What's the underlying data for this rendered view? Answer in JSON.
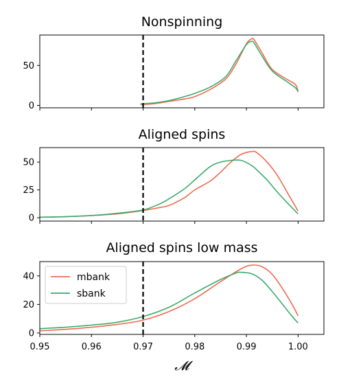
{
  "colors": {
    "mbank": "#ee6a4d",
    "sbank": "#3aaa6c",
    "vline": "#000000"
  },
  "xlabel": "𝓜",
  "chart_data": [
    {
      "type": "line",
      "title": "Nonspinning",
      "xlim": [
        0.95,
        1.005
      ],
      "ylim": [
        -3,
        88
      ],
      "yticks": [
        0,
        50
      ],
      "show_xticklabels": false,
      "vline": 0.97,
      "series": [
        {
          "name": "mbank",
          "x": [
            0.9695,
            0.972,
            0.975,
            0.978,
            0.98,
            0.983,
            0.986,
            0.988,
            0.99,
            0.991,
            0.9915,
            0.993,
            0.995,
            0.998,
            0.9995,
            1.0
          ],
          "y": [
            1,
            2,
            5,
            8,
            11,
            20,
            33,
            52,
            77,
            83,
            82,
            66,
            45,
            32,
            26,
            18
          ]
        },
        {
          "name": "sbank",
          "x": [
            0.9695,
            0.972,
            0.975,
            0.978,
            0.98,
            0.983,
            0.986,
            0.988,
            0.99,
            0.991,
            0.9915,
            0.993,
            0.995,
            0.998,
            0.9995,
            1.0
          ],
          "y": [
            2,
            3,
            6,
            11,
            15,
            23,
            36,
            56,
            76,
            80,
            78,
            62,
            43,
            29,
            22,
            17
          ]
        }
      ]
    },
    {
      "type": "line",
      "title": "Aligned spins",
      "xlim": [
        0.95,
        1.005
      ],
      "ylim": [
        -3,
        63
      ],
      "yticks": [
        0,
        25,
        50
      ],
      "show_xticklabels": false,
      "vline": 0.97,
      "series": [
        {
          "name": "mbank",
          "x": [
            0.95,
            0.955,
            0.96,
            0.965,
            0.97,
            0.973,
            0.975,
            0.978,
            0.98,
            0.983,
            0.985,
            0.987,
            0.989,
            0.991,
            0.992,
            0.994,
            0.996,
            0.998,
            1.0
          ],
          "y": [
            0.5,
            1,
            2,
            3.5,
            6.5,
            9,
            11,
            18,
            25,
            33,
            41,
            50,
            57,
            59.5,
            58.5,
            50,
            38,
            22,
            6
          ]
        },
        {
          "name": "sbank",
          "x": [
            0.95,
            0.955,
            0.96,
            0.965,
            0.97,
            0.973,
            0.975,
            0.978,
            0.98,
            0.983,
            0.985,
            0.987,
            0.989,
            0.991,
            0.992,
            0.994,
            0.996,
            0.998,
            1.0
          ],
          "y": [
            0.5,
            1,
            2,
            4,
            7,
            12,
            17,
            26,
            34,
            46,
            50,
            51.5,
            51.5,
            47,
            43,
            34,
            23,
            13,
            3.5
          ]
        }
      ]
    },
    {
      "type": "line",
      "title": "Aligned spins low mass",
      "xlim": [
        0.95,
        1.005
      ],
      "ylim": [
        -1,
        50
      ],
      "yticks": [
        0,
        20,
        40
      ],
      "xticks": [
        "0.95",
        "0.96",
        "0.97",
        "0.98",
        "0.99",
        "1.00"
      ],
      "show_xticklabels": true,
      "vline": 0.97,
      "legend": {
        "position": "upper-left",
        "entries": [
          "mbank",
          "sbank"
        ]
      },
      "series": [
        {
          "name": "mbank",
          "x": [
            0.95,
            0.955,
            0.96,
            0.965,
            0.97,
            0.975,
            0.98,
            0.985,
            0.989,
            0.991,
            0.993,
            0.995,
            0.997,
            0.999,
            1.0
          ],
          "y": [
            1.5,
            2.5,
            4,
            6,
            9,
            15,
            24,
            36,
            45,
            47.5,
            46.5,
            41,
            31,
            19,
            12
          ]
        },
        {
          "name": "sbank",
          "x": [
            0.95,
            0.955,
            0.96,
            0.965,
            0.97,
            0.975,
            0.98,
            0.985,
            0.988,
            0.989,
            0.991,
            0.993,
            0.995,
            0.997,
            0.999,
            1.0
          ],
          "y": [
            3,
            4,
            5.5,
            7.5,
            11.5,
            18,
            28,
            37.5,
            42,
            42.5,
            41.5,
            37,
            29,
            20,
            11,
            7
          ]
        }
      ]
    }
  ]
}
